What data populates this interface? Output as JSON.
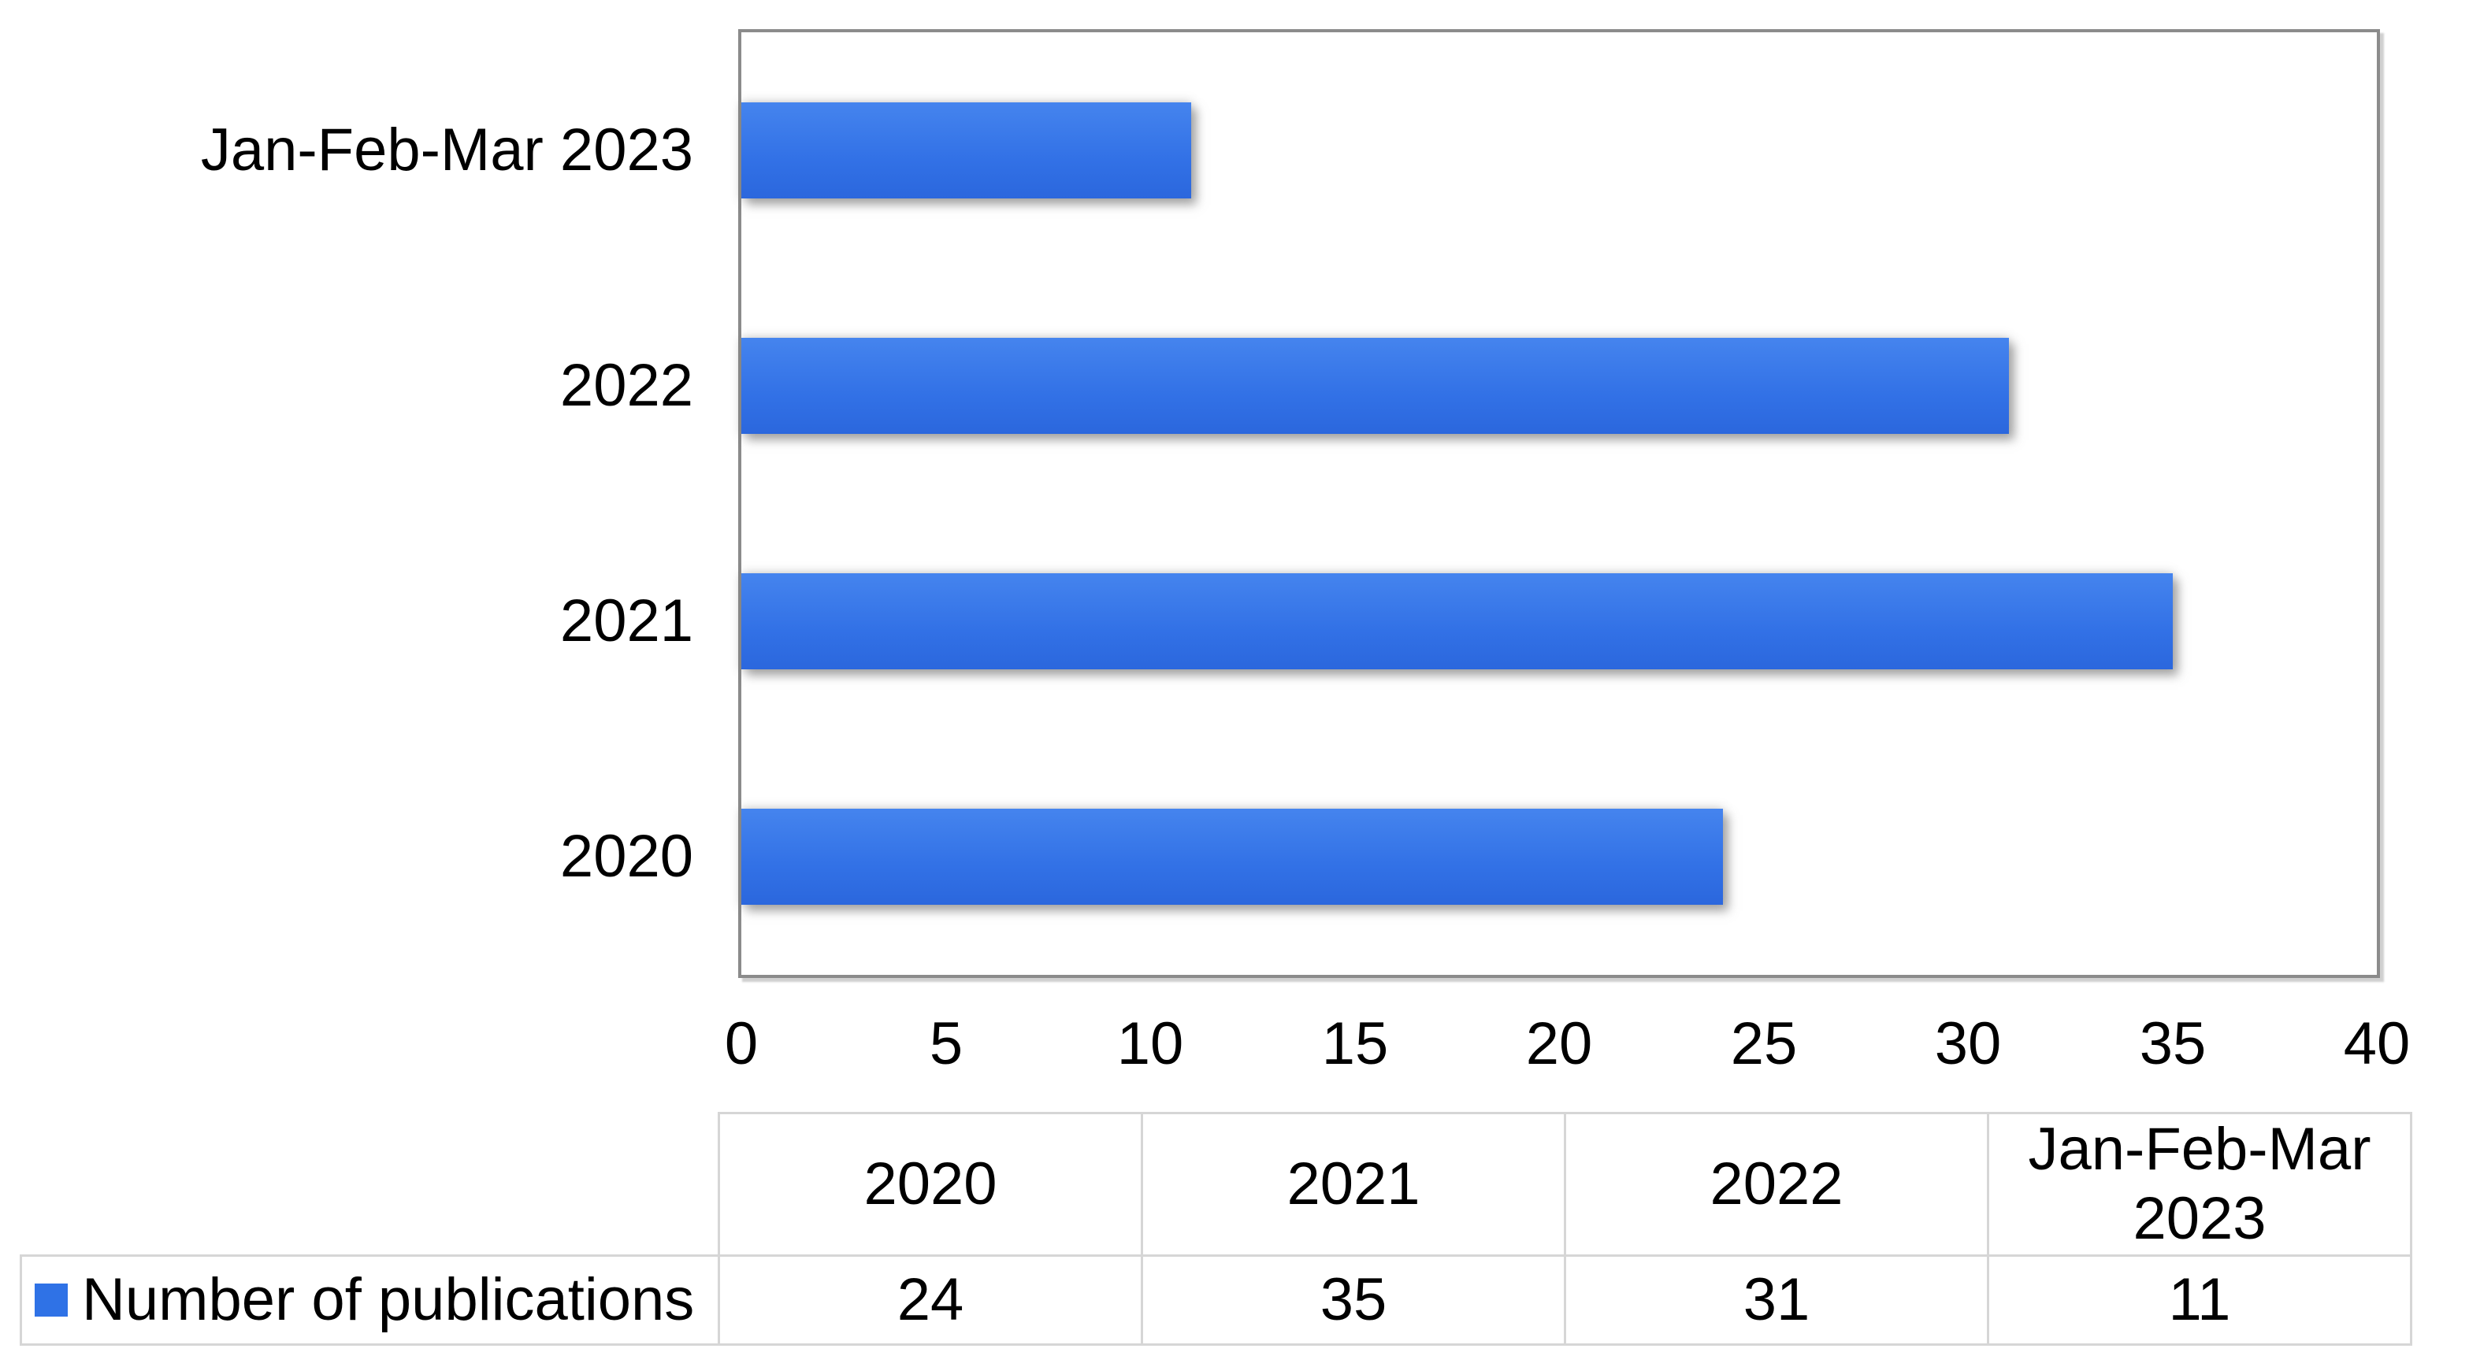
{
  "colors": {
    "bar_gradient_top": "#4584ee",
    "bar_gradient_mid": "#3271e6",
    "bar_gradient_bottom": "#2b67dd",
    "plot_border": "#8b8b8b",
    "table_border": "#d6d6d6",
    "legend_marker": "#2f72e6",
    "text": "#000000",
    "background": "#ffffff"
  },
  "chart_data": {
    "type": "bar",
    "orientation": "horizontal",
    "title": "",
    "xlabel": "",
    "ylabel": "",
    "categories": [
      "2020",
      "2021",
      "2022",
      "Jan-Feb-Mar 2023"
    ],
    "series": [
      {
        "name": "Number of publications",
        "values": [
          24,
          35,
          31,
          11
        ]
      }
    ],
    "xlim": [
      0,
      40
    ],
    "xticks": [
      0,
      5,
      10,
      15,
      20,
      25,
      30,
      35,
      40
    ],
    "grid": "off",
    "legend_position": "bottom-table",
    "axis_category_order": "bottom-to-top"
  },
  "table": {
    "corner_cell": "",
    "columns": [
      "2020",
      "2021",
      "2022",
      "Jan-Feb-Mar 2023"
    ],
    "rows": [
      {
        "label": "Number of publications",
        "values": [
          "24",
          "35",
          "31",
          "11"
        ]
      }
    ]
  }
}
